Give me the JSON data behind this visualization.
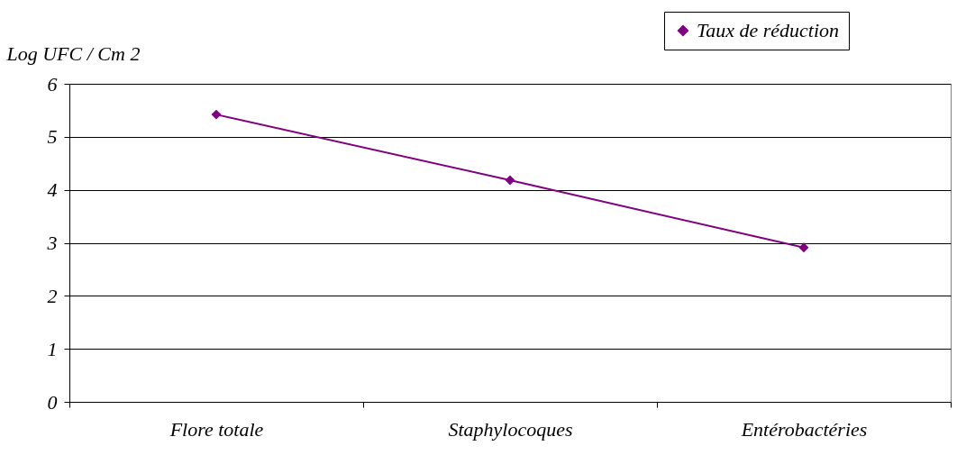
{
  "chart_data": {
    "type": "line",
    "ylabel": "Log UFC / Cm 2",
    "categories": [
      "Flore totale",
      "Staphylocoques",
      "Entérobactéries"
    ],
    "series": [
      {
        "name": "Taux de réduction",
        "color": "#800080",
        "values": [
          5.42,
          4.18,
          2.91
        ]
      }
    ],
    "ylim": [
      0,
      6
    ],
    "yticks": [
      0,
      1,
      2,
      3,
      4,
      5,
      6
    ],
    "grid": "y",
    "legend": "top right",
    "marker": "diamond",
    "line_style": "solid"
  }
}
